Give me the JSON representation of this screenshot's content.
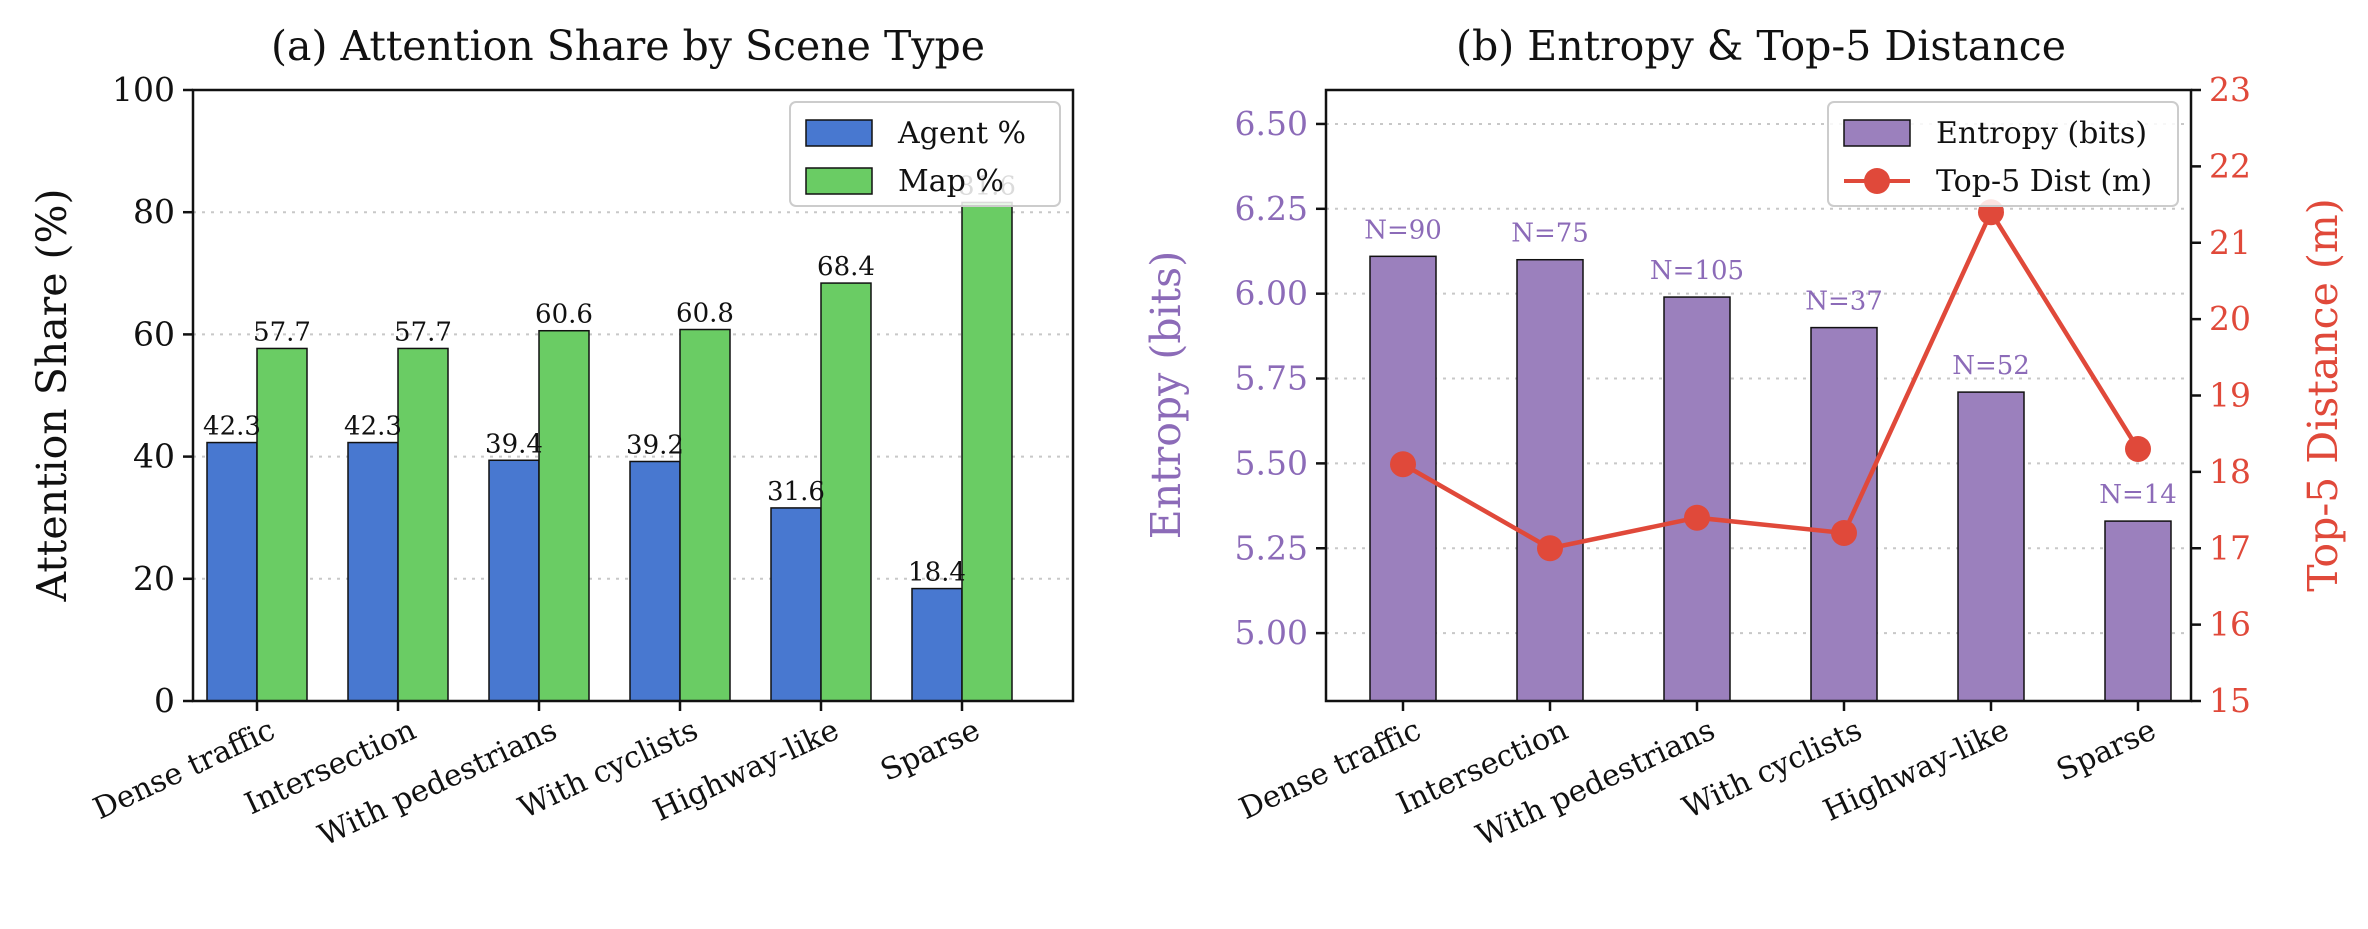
{
  "chart_data": [
    {
      "type": "bar",
      "title": "(a) Attention Share by Scene Type",
      "ylabel": "Attention Share (%)",
      "ylim": [
        0,
        100
      ],
      "yticks": [
        "0",
        "20",
        "40",
        "60",
        "80",
        "100"
      ],
      "categories": [
        "Dense traffic",
        "Intersection",
        "With pedestrians",
        "With cyclists",
        "Highway-like",
        "Sparse"
      ],
      "series": [
        {
          "name": "Agent %",
          "color": "#4878d0",
          "values": [
            42.3,
            42.3,
            39.4,
            39.2,
            31.6,
            18.4
          ],
          "labels": [
            "42.3",
            "42.3",
            "39.4",
            "39.2",
            "31.6",
            "18.4"
          ]
        },
        {
          "name": "Map %",
          "color": "#6acc64",
          "values": [
            57.7,
            57.7,
            60.6,
            60.8,
            68.4,
            81.6
          ],
          "labels": [
            "57.7",
            "57.7",
            "60.6",
            "60.8",
            "68.4",
            "81.6"
          ]
        }
      ],
      "legend": "upper right",
      "grid": "y dotted"
    },
    {
      "type": "bar+line",
      "title": "(b) Entropy & Top-5 Distance",
      "ylabel_left": "Entropy (bits)",
      "ylabel_right": "Top-5 Distance (m)",
      "ylim_left": [
        4.8,
        6.6
      ],
      "ylim_right": [
        15,
        23
      ],
      "yticks_left": [
        "5.00",
        "5.25",
        "5.50",
        "5.75",
        "6.00",
        "6.25",
        "6.50"
      ],
      "yticks_right": [
        "15",
        "16",
        "17",
        "18",
        "19",
        "20",
        "21",
        "22",
        "23"
      ],
      "categories": [
        "Dense traffic",
        "Intersection",
        "With pedestrians",
        "With cyclists",
        "Highway-like",
        "Sparse"
      ],
      "series": [
        {
          "name": "Entropy (bits)",
          "type": "bar",
          "axis": "left",
          "color": "#9b80bd",
          "values": [
            6.11,
            6.1,
            5.99,
            5.9,
            5.71,
            5.33
          ]
        },
        {
          "name": "Top-5 Dist (m)",
          "type": "line",
          "axis": "right",
          "color": "#e0493a",
          "values": [
            18.1,
            17.0,
            17.4,
            17.2,
            21.4,
            18.3
          ]
        }
      ],
      "bar_annotations": [
        "N=90",
        "N=75",
        "N=105",
        "N=37",
        "N=52",
        "N=14"
      ],
      "legend": "upper right",
      "grid": "y dotted",
      "left_axis_color": "#8c6bb8",
      "right_axis_color": "#e0493a"
    }
  ]
}
